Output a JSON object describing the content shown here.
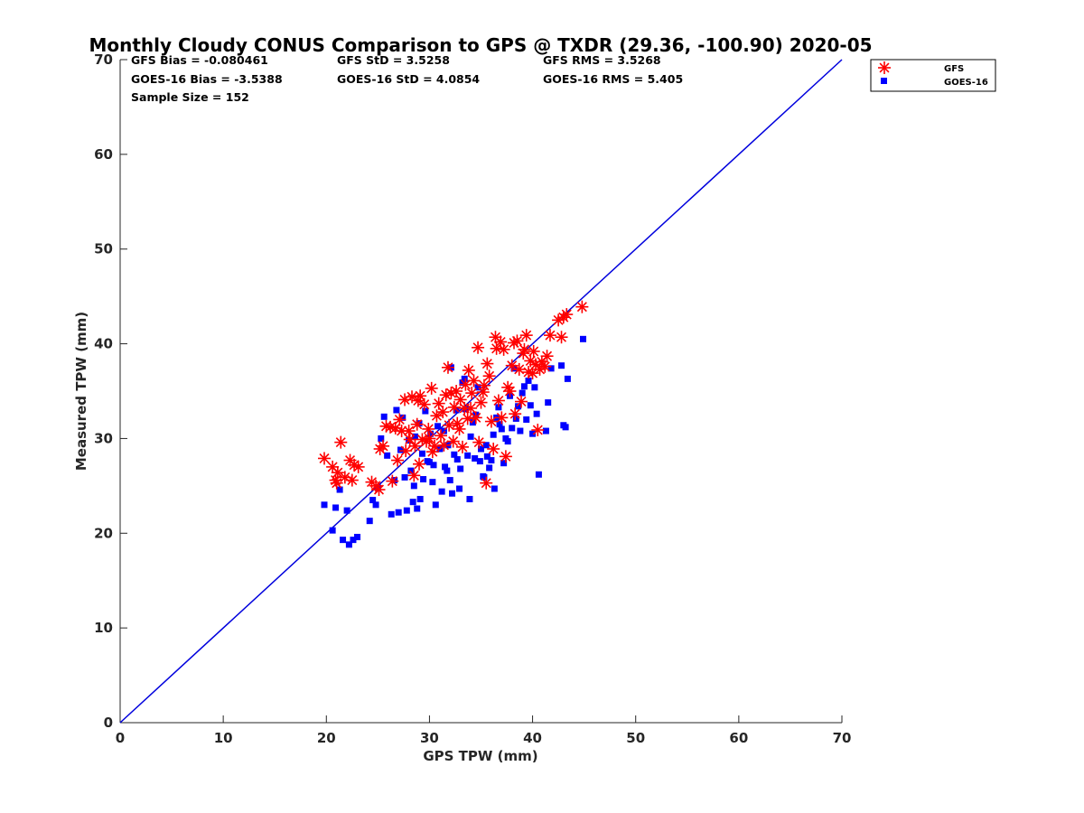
{
  "chart_data": {
    "type": "scatter",
    "title": "Monthly Cloudy CONUS Comparison to GPS @ TXDR (29.36, -100.90) 2020-05",
    "xlabel": "GPS TPW (mm)",
    "ylabel": "Measured TPW (mm)",
    "xlim": [
      0,
      70
    ],
    "ylim": [
      0,
      70
    ],
    "xticks": [
      "0",
      "10",
      "20",
      "30",
      "40",
      "50",
      "60",
      "70"
    ],
    "yticks": [
      "0",
      "10",
      "20",
      "30",
      "40",
      "50",
      "60",
      "70"
    ],
    "grid": false,
    "legend_position": "outside-top-right",
    "stats": [
      {
        "text": "GFS Bias = -0.080461"
      },
      {
        "text": "GFS StD = 3.5258"
      },
      {
        "text": "GFS RMS = 3.5268"
      },
      {
        "text": "GOES-16 Bias = -3.5388"
      },
      {
        "text": "GOES-16 StD = 4.0854"
      },
      {
        "text": "GOES-16 RMS = 5.405"
      },
      {
        "text": "Sample Size = 152"
      }
    ],
    "reference_line": {
      "x": [
        0,
        70
      ],
      "y": [
        0,
        70
      ],
      "color": "#0000dd"
    },
    "series": [
      {
        "name": "GFS",
        "marker": "asterisk",
        "color": "#ff0000",
        "points": [
          [
            19.8,
            27.9
          ],
          [
            20.6,
            27.0
          ],
          [
            20.9,
            25.6
          ],
          [
            21.1,
            26.4
          ],
          [
            21.0,
            25.3
          ],
          [
            21.4,
            29.6
          ],
          [
            21.8,
            25.9
          ],
          [
            22.3,
            27.7
          ],
          [
            22.5,
            25.6
          ],
          [
            22.7,
            27.2
          ],
          [
            23.1,
            27.0
          ],
          [
            24.4,
            25.4
          ],
          [
            24.8,
            25.0
          ],
          [
            25.1,
            24.6
          ],
          [
            25.2,
            28.9
          ],
          [
            25.5,
            29.2
          ],
          [
            25.8,
            31.3
          ],
          [
            26.2,
            31.2
          ],
          [
            26.4,
            25.5
          ],
          [
            26.7,
            31.1
          ],
          [
            26.9,
            27.7
          ],
          [
            27.1,
            32.0
          ],
          [
            27.3,
            30.8
          ],
          [
            27.6,
            34.1
          ],
          [
            27.7,
            28.7
          ],
          [
            28.0,
            30.8
          ],
          [
            28.1,
            29.9
          ],
          [
            28.3,
            34.4
          ],
          [
            28.5,
            26.1
          ],
          [
            28.6,
            29.2
          ],
          [
            28.8,
            31.5
          ],
          [
            28.9,
            34.0
          ],
          [
            29.0,
            27.3
          ],
          [
            29.1,
            34.5
          ],
          [
            29.3,
            29.9
          ],
          [
            29.5,
            33.6
          ],
          [
            29.7,
            29.7
          ],
          [
            29.9,
            31.0
          ],
          [
            30.0,
            30.0
          ],
          [
            30.2,
            35.3
          ],
          [
            30.3,
            28.6
          ],
          [
            30.5,
            29.2
          ],
          [
            30.7,
            32.4
          ],
          [
            30.9,
            33.7
          ],
          [
            31.1,
            30.3
          ],
          [
            31.3,
            32.8
          ],
          [
            31.4,
            29.3
          ],
          [
            31.6,
            34.6
          ],
          [
            31.8,
            37.5
          ],
          [
            31.9,
            31.4
          ],
          [
            32.1,
            34.8
          ],
          [
            32.3,
            29.7
          ],
          [
            32.4,
            33.3
          ],
          [
            32.6,
            35.0
          ],
          [
            32.7,
            31.6
          ],
          [
            32.9,
            31.0
          ],
          [
            33.0,
            34.1
          ],
          [
            33.2,
            29.1
          ],
          [
            33.4,
            33.2
          ],
          [
            33.5,
            35.7
          ],
          [
            33.7,
            32.1
          ],
          [
            33.8,
            37.2
          ],
          [
            34.0,
            33.2
          ],
          [
            34.1,
            34.8
          ],
          [
            34.3,
            36.1
          ],
          [
            34.5,
            32.2
          ],
          [
            34.7,
            39.6
          ],
          [
            34.8,
            29.6
          ],
          [
            35.0,
            33.8
          ],
          [
            35.2,
            34.9
          ],
          [
            35.3,
            35.6
          ],
          [
            35.5,
            25.3
          ],
          [
            35.6,
            37.9
          ],
          [
            35.8,
            36.6
          ],
          [
            36.0,
            31.8
          ],
          [
            36.2,
            28.9
          ],
          [
            36.4,
            40.7
          ],
          [
            36.5,
            39.5
          ],
          [
            36.7,
            34.0
          ],
          [
            36.9,
            40.2
          ],
          [
            37.0,
            32.2
          ],
          [
            37.2,
            39.4
          ],
          [
            37.4,
            28.1
          ],
          [
            37.6,
            35.4
          ],
          [
            37.8,
            35.0
          ],
          [
            38.0,
            37.7
          ],
          [
            38.2,
            40.1
          ],
          [
            38.3,
            32.6
          ],
          [
            38.5,
            40.3
          ],
          [
            38.7,
            37.3
          ],
          [
            38.9,
            33.9
          ],
          [
            39.1,
            39.0
          ],
          [
            39.2,
            39.4
          ],
          [
            39.4,
            40.9
          ],
          [
            39.6,
            37.0
          ],
          [
            39.8,
            38.2
          ],
          [
            40.0,
            36.9
          ],
          [
            40.1,
            39.2
          ],
          [
            40.3,
            37.8
          ],
          [
            40.5,
            30.9
          ],
          [
            40.7,
            37.3
          ],
          [
            40.9,
            38.1
          ],
          [
            41.2,
            37.6
          ],
          [
            41.4,
            38.7
          ],
          [
            41.7,
            40.9
          ],
          [
            42.5,
            42.5
          ],
          [
            42.8,
            40.7
          ],
          [
            43.0,
            42.8
          ],
          [
            43.3,
            43.1
          ],
          [
            44.8,
            43.9
          ]
        ]
      },
      {
        "name": "GOES-16",
        "marker": "square",
        "color": "#0000ff",
        "points": [
          [
            19.8,
            23.0
          ],
          [
            20.6,
            20.3
          ],
          [
            20.9,
            22.7
          ],
          [
            21.3,
            24.6
          ],
          [
            21.6,
            19.3
          ],
          [
            22.0,
            22.4
          ],
          [
            22.2,
            18.8
          ],
          [
            22.6,
            19.3
          ],
          [
            23.0,
            19.6
          ],
          [
            24.2,
            21.3
          ],
          [
            24.5,
            23.5
          ],
          [
            24.8,
            23.0
          ],
          [
            25.0,
            24.8
          ],
          [
            25.3,
            30.0
          ],
          [
            25.6,
            32.3
          ],
          [
            25.9,
            28.2
          ],
          [
            26.3,
            22.0
          ],
          [
            26.6,
            25.6
          ],
          [
            26.8,
            33.0
          ],
          [
            27.0,
            22.2
          ],
          [
            27.2,
            28.8
          ],
          [
            27.4,
            32.2
          ],
          [
            27.6,
            25.9
          ],
          [
            27.8,
            22.4
          ],
          [
            28.0,
            29.8
          ],
          [
            28.2,
            26.6
          ],
          [
            28.4,
            23.3
          ],
          [
            28.5,
            25.0
          ],
          [
            28.6,
            30.2
          ],
          [
            28.8,
            22.6
          ],
          [
            29.0,
            31.6
          ],
          [
            29.1,
            23.6
          ],
          [
            29.3,
            28.4
          ],
          [
            29.4,
            25.7
          ],
          [
            29.6,
            32.9
          ],
          [
            29.8,
            27.6
          ],
          [
            30.0,
            27.5
          ],
          [
            30.1,
            30.5
          ],
          [
            30.3,
            25.4
          ],
          [
            30.4,
            27.2
          ],
          [
            30.6,
            23.0
          ],
          [
            30.8,
            31.3
          ],
          [
            31.0,
            28.9
          ],
          [
            31.2,
            24.4
          ],
          [
            31.4,
            30.8
          ],
          [
            31.5,
            27.0
          ],
          [
            31.7,
            26.6
          ],
          [
            31.8,
            29.3
          ],
          [
            32.0,
            25.6
          ],
          [
            32.1,
            37.5
          ],
          [
            32.2,
            24.2
          ],
          [
            32.4,
            28.3
          ],
          [
            32.6,
            33.0
          ],
          [
            32.7,
            27.8
          ],
          [
            32.9,
            24.7
          ],
          [
            33.0,
            26.8
          ],
          [
            33.2,
            35.9
          ],
          [
            33.4,
            36.3
          ],
          [
            33.5,
            33.1
          ],
          [
            33.7,
            28.2
          ],
          [
            33.9,
            23.6
          ],
          [
            34.0,
            30.2
          ],
          [
            34.2,
            31.7
          ],
          [
            34.4,
            27.9
          ],
          [
            34.5,
            32.5
          ],
          [
            34.7,
            35.4
          ],
          [
            34.9,
            27.6
          ],
          [
            35.0,
            28.9
          ],
          [
            35.2,
            26.0
          ],
          [
            35.3,
            25.9
          ],
          [
            35.5,
            29.3
          ],
          [
            35.6,
            28.1
          ],
          [
            35.8,
            26.9
          ],
          [
            36.0,
            27.7
          ],
          [
            36.2,
            30.4
          ],
          [
            36.3,
            24.7
          ],
          [
            36.5,
            32.2
          ],
          [
            36.7,
            33.3
          ],
          [
            36.8,
            31.5
          ],
          [
            37.0,
            31.0
          ],
          [
            37.2,
            27.4
          ],
          [
            37.4,
            30.0
          ],
          [
            37.6,
            29.7
          ],
          [
            37.8,
            34.5
          ],
          [
            38.0,
            31.1
          ],
          [
            38.2,
            37.4
          ],
          [
            38.4,
            32.1
          ],
          [
            38.6,
            33.4
          ],
          [
            38.8,
            30.8
          ],
          [
            39.0,
            34.8
          ],
          [
            39.2,
            35.5
          ],
          [
            39.4,
            32.0
          ],
          [
            39.6,
            36.1
          ],
          [
            39.8,
            33.5
          ],
          [
            40.0,
            30.5
          ],
          [
            40.2,
            35.4
          ],
          [
            40.4,
            32.6
          ],
          [
            40.6,
            26.2
          ],
          [
            41.3,
            30.8
          ],
          [
            41.5,
            33.8
          ],
          [
            41.8,
            37.4
          ],
          [
            42.8,
            37.7
          ],
          [
            43.0,
            31.4
          ],
          [
            43.2,
            31.2
          ],
          [
            43.4,
            36.3
          ],
          [
            44.9,
            40.5
          ]
        ]
      }
    ]
  }
}
